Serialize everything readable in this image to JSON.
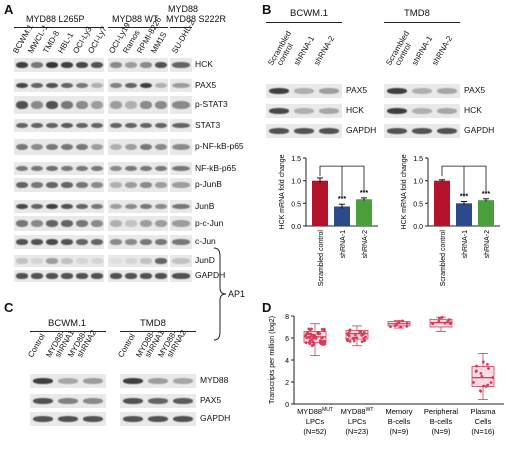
{
  "panelA": {
    "letter": "A",
    "groups": [
      {
        "label": "MYD88 L265P",
        "lanes": [
          "BCWM.1",
          "MWCL-1",
          "TMD-8",
          "HBL-1",
          "OCI-Ly3",
          "OCI-Ly7"
        ]
      },
      {
        "label": "MYD88 WT",
        "lanes": [
          "OCI-Ly19",
          "Ramos",
          "RPMI-8226",
          "MM1S"
        ]
      },
      {
        "label": "MYD88 S222R",
        "lanes": [
          "SU-DHL-2"
        ]
      }
    ],
    "rows": [
      "HCK",
      "PAX5",
      "p-STAT3",
      "STAT3",
      "p-NF-kB-p65",
      "NF-kB-p65",
      "p-JunB",
      "JunB",
      "p-c-Jun",
      "c-Jun",
      "JunD",
      "GAPDH"
    ],
    "bracket_label": "AP1"
  },
  "panelB": {
    "letter": "B",
    "blots": [
      {
        "title": "BCWM.1",
        "lanes": [
          "Scrambled control",
          "shRNA-1",
          "shRNA-2"
        ],
        "rows": [
          "PAX5",
          "HCK",
          "GAPDH"
        ]
      },
      {
        "title": "TMD8",
        "lanes": [
          "Scrambled control",
          "shRNA-1",
          "shRNA-2"
        ],
        "rows": [
          "PAX5",
          "HCK",
          "GAPDH"
        ]
      }
    ]
  },
  "panelC": {
    "letter": "C",
    "blots": [
      {
        "title": "BCWM.1",
        "lanes": [
          "Control",
          "MYD88-shRNA1",
          "MYD88-shRNA2"
        ]
      },
      {
        "title": "TMD8",
        "lanes": [
          "Control",
          "MYD88-shRNA1",
          "MYD88-shRNA2"
        ]
      }
    ],
    "rows": [
      "MYD88",
      "PAX5",
      "GAPDH"
    ]
  },
  "panelD": {
    "letter": "D"
  },
  "chart_data": [
    {
      "type": "bar",
      "title": "",
      "cell_line": "BCWM.1",
      "categories": [
        "Scrambled control",
        "shRNA-1",
        "shRNA-2"
      ],
      "values": [
        1.0,
        0.43,
        0.59
      ],
      "errors": [
        0.06,
        0.05,
        0.03
      ],
      "colors": [
        "#b5122b",
        "#2b4a8c",
        "#49a03a"
      ],
      "ylabel": "HCK mRNA fold change",
      "ylim": [
        0.0,
        1.5
      ],
      "yticks": [
        "0.0",
        "0.5",
        "1.0",
        "1.5"
      ],
      "significance": [
        "***",
        "***"
      ]
    },
    {
      "type": "bar",
      "title": "",
      "cell_line": "TMD8",
      "categories": [
        "Scrambled control",
        "shRNA-1",
        "shRNA-2"
      ],
      "values": [
        1.0,
        0.5,
        0.57
      ],
      "errors": [
        0.02,
        0.04,
        0.03
      ],
      "colors": [
        "#b5122b",
        "#2b4a8c",
        "#49a03a"
      ],
      "ylabel": "HCK mRNA fold change",
      "ylim": [
        0.0,
        1.5
      ],
      "yticks": [
        "0.0",
        "0.5",
        "1.0",
        "1.5"
      ],
      "significance": [
        "***",
        "***"
      ]
    },
    {
      "type": "box",
      "title": "",
      "ylabel": "Transcripts per million (log2)",
      "ylim": [
        0,
        8
      ],
      "yticks": [
        "0",
        "2",
        "4",
        "6",
        "8"
      ],
      "color": "#d43c5a",
      "categories": [
        {
          "line1": "MYD88",
          "sup": "MUT",
          "line2": "LPCs",
          "n": "(N=52)",
          "median": 6.1,
          "q1": 5.6,
          "q3": 6.6,
          "min": 4.4,
          "max": 7.3
        },
        {
          "line1": "MYD88",
          "sup": "WT",
          "line2": "LPCs",
          "n": "(N=23)",
          "median": 6.4,
          "q1": 5.9,
          "q3": 6.7,
          "min": 5.3,
          "max": 7.1
        },
        {
          "line1": "Memory",
          "sup": "",
          "line2": "B-cells",
          "n": "(N=9)",
          "median": 7.3,
          "q1": 7.1,
          "q3": 7.5,
          "min": 6.9,
          "max": 7.6
        },
        {
          "line1": "Peripheral",
          "sup": "",
          "line2": "B-cells",
          "n": "(N=9)",
          "median": 7.4,
          "q1": 7.0,
          "q3": 7.7,
          "min": 6.6,
          "max": 7.9
        },
        {
          "line1": "Plasma",
          "sup": "",
          "line2": "Cells",
          "n": "(N=16)",
          "median": 2.4,
          "q1": 1.6,
          "q3": 3.4,
          "min": 0.4,
          "max": 4.6
        }
      ]
    }
  ]
}
